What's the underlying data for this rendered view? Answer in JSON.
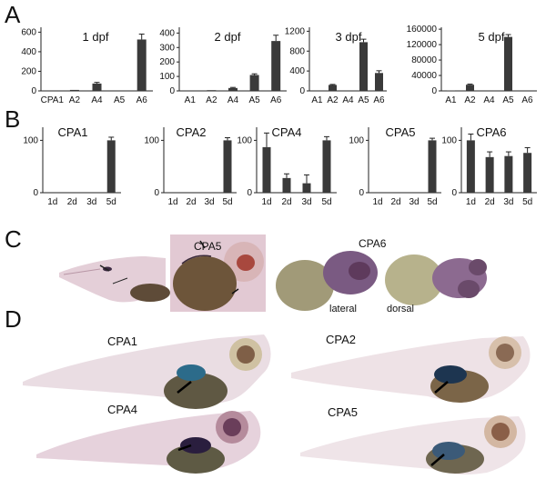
{
  "panels": {
    "a": "A",
    "b": "B",
    "c": "C",
    "d": "D"
  },
  "chart_data": [
    {
      "type": "bar",
      "title": "1 dpf",
      "categories": [
        "CPA1",
        "A2",
        "A4",
        "A5",
        "A6"
      ],
      "values": [
        0,
        10,
        75,
        0,
        525
      ],
      "errors": [
        0,
        0,
        12,
        0,
        55
      ],
      "ylim": [
        0,
        650
      ],
      "yticks": [
        "0",
        "200",
        "400",
        "600"
      ]
    },
    {
      "type": "bar",
      "title": "2 dpf",
      "categories": [
        "A1",
        "A2",
        "A4",
        "A5",
        "A6"
      ],
      "values": [
        0,
        5,
        20,
        110,
        345
      ],
      "errors": [
        0,
        0,
        4,
        8,
        40
      ],
      "ylim": [
        0,
        440
      ],
      "yticks": [
        "0",
        "100",
        "200",
        "300",
        "400"
      ]
    },
    {
      "type": "bar",
      "title": "3 dpf",
      "categories": [
        "A1",
        "A2",
        "A4",
        "A5",
        "A6"
      ],
      "values": [
        0,
        120,
        0,
        980,
        360
      ],
      "errors": [
        0,
        10,
        0,
        60,
        45
      ],
      "ylim": [
        0,
        1280
      ],
      "yticks": [
        "0",
        "400",
        "800",
        "1200"
      ]
    },
    {
      "type": "bar",
      "title": "5 dpf",
      "categories": [
        "A1",
        "A2",
        "A4",
        "A5",
        "A6"
      ],
      "values": [
        1000,
        16000,
        0,
        140000,
        0
      ],
      "errors": [
        0,
        1500,
        0,
        6000,
        0
      ],
      "ylim": [
        0,
        165000
      ],
      "yticks": [
        "0",
        "40000",
        "80000",
        "120000",
        "160000"
      ]
    },
    {
      "type": "bar",
      "title": "CPA1",
      "categories": [
        "1d",
        "2d",
        "3d",
        "5d"
      ],
      "values": [
        0,
        0,
        0,
        100
      ],
      "errors": [
        0,
        0,
        0,
        6
      ],
      "ylim": [
        0,
        125
      ],
      "yticks": [
        "0",
        "100"
      ]
    },
    {
      "type": "bar",
      "title": "CPA2",
      "categories": [
        "1d",
        "2d",
        "3d",
        "5d"
      ],
      "values": [
        0,
        0,
        0,
        100
      ],
      "errors": [
        0,
        0,
        0,
        5
      ],
      "ylim": [
        0,
        125
      ],
      "yticks": [
        "0",
        "100"
      ]
    },
    {
      "type": "bar",
      "title": "CPA4",
      "categories": [
        "1d",
        "2d",
        "3d",
        "5d"
      ],
      "values": [
        87,
        28,
        18,
        100
      ],
      "errors": [
        27,
        8,
        16,
        7
      ],
      "ylim": [
        0,
        125
      ],
      "yticks": [
        "0",
        "100"
      ]
    },
    {
      "type": "bar",
      "title": "CPA5",
      "categories": [
        "1d",
        "2d",
        "3d",
        "5d"
      ],
      "values": [
        0,
        0,
        0,
        100
      ],
      "errors": [
        0,
        0,
        0,
        4
      ],
      "ylim": [
        0,
        125
      ],
      "yticks": [
        "0",
        "100"
      ]
    },
    {
      "type": "bar",
      "title": "CPA6",
      "categories": [
        "1d",
        "2d",
        "3d",
        "5d"
      ],
      "values": [
        100,
        68,
        70,
        76
      ],
      "errors": [
        12,
        10,
        8,
        10
      ],
      "ylim": [
        0,
        125
      ],
      "yticks": [
        "0",
        "100"
      ]
    }
  ],
  "images": {
    "c_left_label": "CPA5",
    "c_right_label": "CPA6",
    "c_lateral": "lateral",
    "c_dorsal": "dorsal",
    "d_labels": [
      "CPA1",
      "CPA2",
      "CPA4",
      "CPA5"
    ]
  },
  "colors": {
    "bar": "#3a3a3a",
    "embryo": "#e7d3dc",
    "yolk": "#6e5a3e",
    "stain": "#2a4e7a"
  }
}
